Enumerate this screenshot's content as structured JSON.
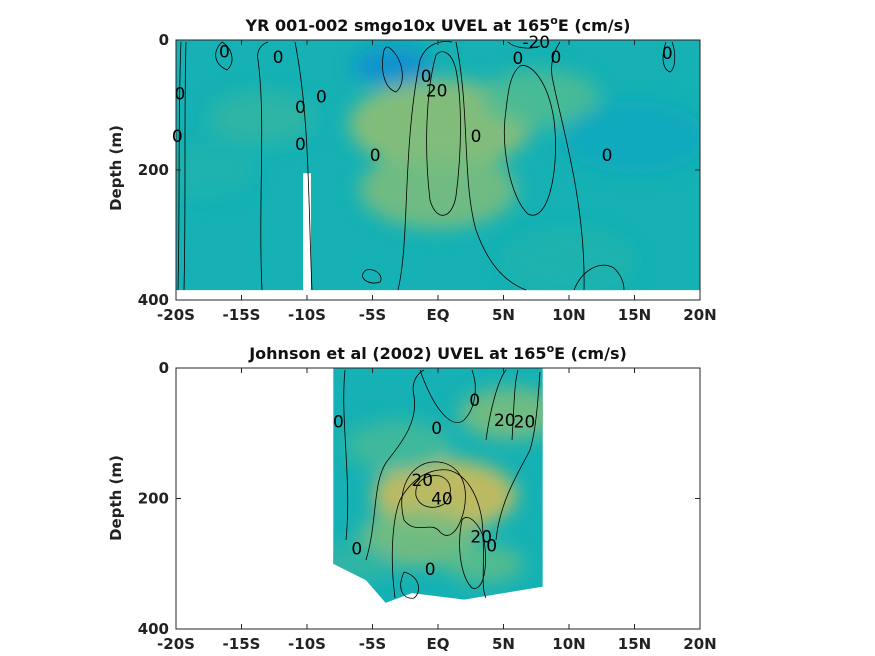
{
  "chart_data": [
    {
      "type": "heatmap",
      "title_main": "YR 001-002 smgo10x UVEL at 165",
      "title_sup": "o",
      "title_tail": "E (cm/s)",
      "xlabel": "",
      "ylabel": "Depth (m)",
      "xlim": [
        -20,
        20
      ],
      "ylim": [
        0,
        400
      ],
      "y_reversed": true,
      "x_ticks": [
        -20,
        -15,
        -10,
        -5,
        0,
        5,
        10,
        15,
        20
      ],
      "x_tick_labels": [
        "-20S",
        "-15S",
        "-10S",
        "-5S",
        "EQ",
        "5N",
        "10N",
        "15N",
        "20N"
      ],
      "y_ticks": [
        0,
        200,
        400
      ],
      "y_tick_labels": [
        "0",
        "200",
        "400"
      ],
      "data_x_range": [
        -20,
        20
      ],
      "data_max_depth": 385,
      "colormap": "parula",
      "color_range": [
        -60,
        60
      ],
      "contour_labels": [
        {
          "text": "-20",
          "x": 7.5,
          "y": 3
        },
        {
          "text": "20",
          "x": -0.1,
          "y": 78
        },
        {
          "text": "0",
          "x": -19.7,
          "y": 82
        },
        {
          "text": "0",
          "x": -16.3,
          "y": 18
        },
        {
          "text": "0",
          "x": -12.2,
          "y": 26
        },
        {
          "text": "0",
          "x": -0.9,
          "y": 55
        },
        {
          "text": "0",
          "x": -8.9,
          "y": 87
        },
        {
          "text": "0",
          "x": -10.5,
          "y": 103
        },
        {
          "text": "0",
          "x": -19.9,
          "y": 148
        },
        {
          "text": "0",
          "x": -10.5,
          "y": 160
        },
        {
          "text": "0",
          "x": 2.9,
          "y": 148
        },
        {
          "text": "0",
          "x": -4.8,
          "y": 177
        },
        {
          "text": "0",
          "x": 6.1,
          "y": 28
        },
        {
          "text": "0",
          "x": 9.0,
          "y": 26
        },
        {
          "text": "0",
          "x": 17.5,
          "y": 20
        },
        {
          "text": "0",
          "x": 12.9,
          "y": 177
        }
      ]
    },
    {
      "type": "heatmap",
      "title_main": "Johnson et al (2002) UVEL at 165",
      "title_sup": "o",
      "title_tail": "E (cm/s)",
      "xlabel": "",
      "ylabel": "Depth (m)",
      "xlim": [
        -20,
        20
      ],
      "ylim": [
        0,
        400
      ],
      "y_reversed": true,
      "x_ticks": [
        -20,
        -15,
        -10,
        -5,
        0,
        5,
        10,
        15,
        20
      ],
      "x_tick_labels": [
        "-20S",
        "-15S",
        "-10S",
        "-5S",
        "EQ",
        "5N",
        "10N",
        "15N",
        "20N"
      ],
      "y_ticks": [
        0,
        200,
        400
      ],
      "y_tick_labels": [
        "0",
        "200",
        "400"
      ],
      "data_x_range": [
        -8,
        8
      ],
      "data_max_depth": 360,
      "colormap": "parula",
      "color_range": [
        -60,
        60
      ],
      "contour_labels": [
        {
          "text": "40",
          "x": 0.3,
          "y": 200
        },
        {
          "text": "20",
          "x": -1.2,
          "y": 172
        },
        {
          "text": "20",
          "x": 5.1,
          "y": 80
        },
        {
          "text": "20",
          "x": 6.6,
          "y": 82
        },
        {
          "text": "20",
          "x": 3.3,
          "y": 258
        },
        {
          "text": "0",
          "x": -7.6,
          "y": 82
        },
        {
          "text": "0",
          "x": -0.1,
          "y": 92
        },
        {
          "text": "0",
          "x": 2.8,
          "y": 49
        },
        {
          "text": "0",
          "x": -6.2,
          "y": 277
        },
        {
          "text": "0",
          "x": 4.1,
          "y": 272
        },
        {
          "text": "0",
          "x": -0.6,
          "y": 308
        }
      ]
    }
  ]
}
